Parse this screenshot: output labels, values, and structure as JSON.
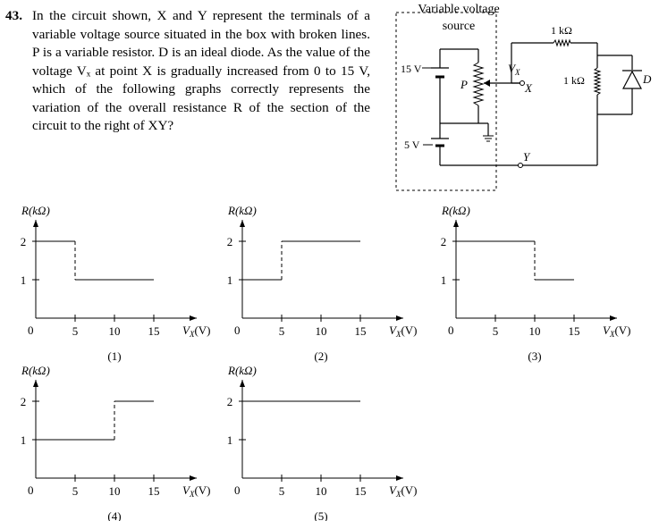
{
  "question": {
    "number": "43.",
    "text": "In the circuit shown, X and Y represent the terminals of a variable voltage source situated in the box with broken lines. P is a variable resistor. D is an ideal diode. As the value of the voltage Vₓ at point X is gradually increased from 0 to 15 V, which of the following graphs correctly represents the variation of the overall resistance R of the section of the circuit to the right of XY?"
  },
  "circuit": {
    "box_title_line1": "Variable voltage",
    "box_title_line2": "source",
    "battery_top_label": "15 V",
    "battery_bottom_label": "5 V",
    "resistor_p_label": "P",
    "vx_label": "V",
    "vx_sub": "X",
    "terminal_x_label": "X",
    "terminal_y_label": "Y",
    "series_resistor_label": "1 kΩ",
    "shunt_resistor_label": "1 kΩ",
    "diode_label": "D"
  },
  "graphs": [
    {
      "caption": "(1)",
      "ylabel": "R(kΩ)",
      "xlabel_v": "V",
      "xlabel_sub": "X",
      "xlabel_unit": "(V)",
      "origin_label": "0",
      "x_ticks": [
        "5",
        "10",
        "15"
      ],
      "y_ticks": [
        "1",
        "2"
      ],
      "steps": [
        {
          "x0": 0,
          "x1": 5,
          "r": 2
        },
        {
          "x0": 5,
          "x1": 15,
          "r": 1
        }
      ]
    },
    {
      "caption": "(2)",
      "ylabel": "R(kΩ)",
      "xlabel_v": "V",
      "xlabel_sub": "X",
      "xlabel_unit": "(V)",
      "origin_label": "0",
      "x_ticks": [
        "5",
        "10",
        "15"
      ],
      "y_ticks": [
        "1",
        "2"
      ],
      "steps": [
        {
          "x0": 0,
          "x1": 5,
          "r": 1
        },
        {
          "x0": 5,
          "x1": 15,
          "r": 2
        }
      ]
    },
    {
      "caption": "(3)",
      "ylabel": "R(kΩ)",
      "xlabel_v": "V",
      "xlabel_sub": "X",
      "xlabel_unit": "(V)",
      "origin_label": "0",
      "x_ticks": [
        "5",
        "10",
        "15"
      ],
      "y_ticks": [
        "1",
        "2"
      ],
      "steps": [
        {
          "x0": 0,
          "x1": 10,
          "r": 2
        },
        {
          "x0": 10,
          "x1": 15,
          "r": 1
        }
      ]
    },
    {
      "caption": "(4)",
      "ylabel": "R(kΩ)",
      "xlabel_v": "V",
      "xlabel_sub": "X",
      "xlabel_unit": "(V)",
      "origin_label": "0",
      "x_ticks": [
        "5",
        "10",
        "15"
      ],
      "y_ticks": [
        "1",
        "2"
      ],
      "steps": [
        {
          "x0": 0,
          "x1": 10,
          "r": 1
        },
        {
          "x0": 10,
          "x1": 15,
          "r": 2
        }
      ]
    },
    {
      "caption": "(5)",
      "ylabel": "R(kΩ)",
      "xlabel_v": "V",
      "xlabel_sub": "X",
      "xlabel_unit": "(V)",
      "origin_label": "0",
      "x_ticks": [
        "5",
        "10",
        "15"
      ],
      "y_ticks": [
        "1",
        "2"
      ],
      "steps": [
        {
          "x0": 0,
          "x1": 15,
          "r": 2
        }
      ]
    }
  ]
}
